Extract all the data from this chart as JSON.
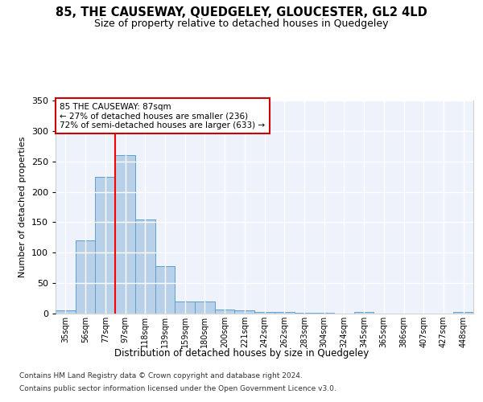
{
  "title": "85, THE CAUSEWAY, QUEDGELEY, GLOUCESTER, GL2 4LD",
  "subtitle": "Size of property relative to detached houses in Quedgeley",
  "xlabel": "Distribution of detached houses by size in Quedgeley",
  "ylabel": "Number of detached properties",
  "bar_color": "#b8d0e8",
  "bar_edge_color": "#5a9fd4",
  "background_color": "#eef2fb",
  "grid_color": "#ffffff",
  "bins": [
    "35sqm",
    "56sqm",
    "77sqm",
    "97sqm",
    "118sqm",
    "139sqm",
    "159sqm",
    "180sqm",
    "200sqm",
    "221sqm",
    "242sqm",
    "262sqm",
    "283sqm",
    "304sqm",
    "324sqm",
    "345sqm",
    "365sqm",
    "386sqm",
    "407sqm",
    "427sqm",
    "448sqm"
  ],
  "values": [
    5,
    120,
    225,
    260,
    155,
    78,
    20,
    20,
    7,
    5,
    3,
    2,
    1,
    1,
    0,
    2,
    0,
    0,
    0,
    0,
    2
  ],
  "ylim": [
    0,
    350
  ],
  "yticks": [
    0,
    50,
    100,
    150,
    200,
    250,
    300,
    350
  ],
  "property_line_x": 2.5,
  "annotation_text": "85 THE CAUSEWAY: 87sqm\n← 27% of detached houses are smaller (236)\n72% of semi-detached houses are larger (633) →",
  "annotation_box_color": "#ffffff",
  "annotation_box_edge_color": "#cc0000",
  "footer_line1": "Contains HM Land Registry data © Crown copyright and database right 2024.",
  "footer_line2": "Contains public sector information licensed under the Open Government Licence v3.0."
}
